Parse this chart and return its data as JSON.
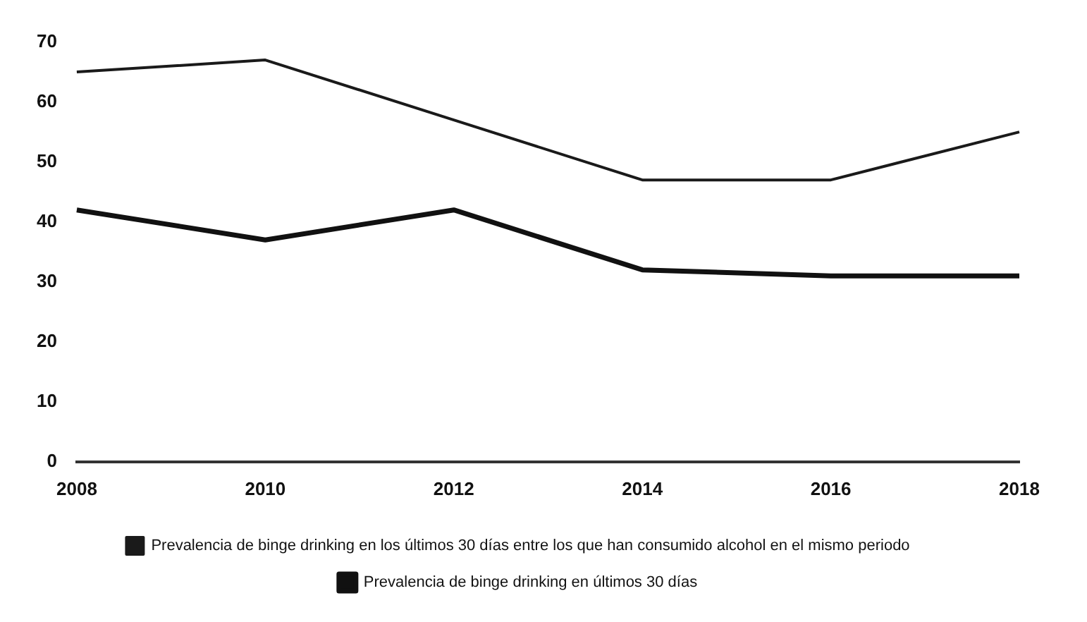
{
  "chart_data": {
    "type": "line",
    "categories": [
      "2008",
      "2010",
      "2012",
      "2014",
      "2016",
      "2018"
    ],
    "series": [
      {
        "name": "Prevalencia de binge drinking en los últimos 30 días entre los que han consumido alcohol en el mismo periodo",
        "color": "#1a1a1a",
        "values": [
          65,
          67,
          57,
          47,
          47,
          55
        ]
      },
      {
        "name": "Prevalencia de binge drinking en últimos 30 días",
        "color": "#111111",
        "values": [
          42,
          37,
          42,
          32,
          31,
          31
        ]
      }
    ],
    "ylim": [
      0,
      70
    ],
    "yticks": [
      0,
      10,
      20,
      30,
      40,
      50,
      60,
      70
    ],
    "grid": false,
    "legend": "bottom",
    "marker": "none",
    "line_style": "solid"
  }
}
